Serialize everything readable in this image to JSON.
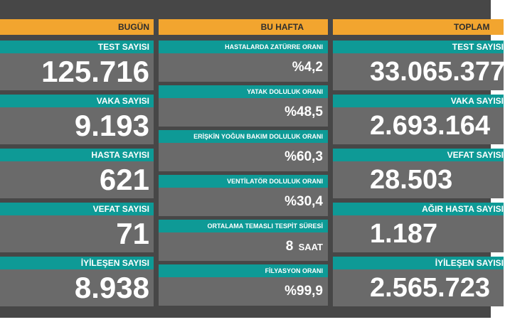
{
  "columns": {
    "today": {
      "header": "BUGÜN",
      "items": [
        {
          "label": "TEST SAYISI",
          "value": "125.716"
        },
        {
          "label": "VAKA SAYISI",
          "value": "9.193"
        },
        {
          "label": "HASTA SAYISI",
          "value": "621"
        },
        {
          "label": "VEFAT SAYISI",
          "value": "71"
        },
        {
          "label": "İYİLEŞEN SAYISI",
          "value": "8.938"
        }
      ]
    },
    "week": {
      "header": "BU HAFTA",
      "items": [
        {
          "label": "HASTALARDA ZATÜRRE ORANI",
          "value": "%4,2"
        },
        {
          "label": "YATAK DOLULUK ORANI",
          "value": "%48,5"
        },
        {
          "label": "ERİŞKİN YOĞUN BAKIM DOLULUK ORANI",
          "value": "%60,3"
        },
        {
          "label": "VENTİLATÖR DOLULUK ORANI",
          "value": "%30,4"
        },
        {
          "label": "ORTALAMA TEMASLI TESPİT SÜRESİ",
          "value": "8",
          "unit": "SAAT"
        },
        {
          "label": "FİLYASYON ORANI",
          "value": "%99,9"
        }
      ]
    },
    "total": {
      "header": "TOPLAM",
      "items": [
        {
          "label": "TEST SAYISI",
          "value": "33.065.377"
        },
        {
          "label": "VAKA SAYISI",
          "value": "2.693.164"
        },
        {
          "label": "VEFAT SAYISI",
          "value": "28.503"
        },
        {
          "label": "AĞIR HASTA SAYISI",
          "value": "1.187"
        },
        {
          "label": "İYİLEŞEN SAYISI",
          "value": "2.565.723"
        }
      ]
    }
  }
}
